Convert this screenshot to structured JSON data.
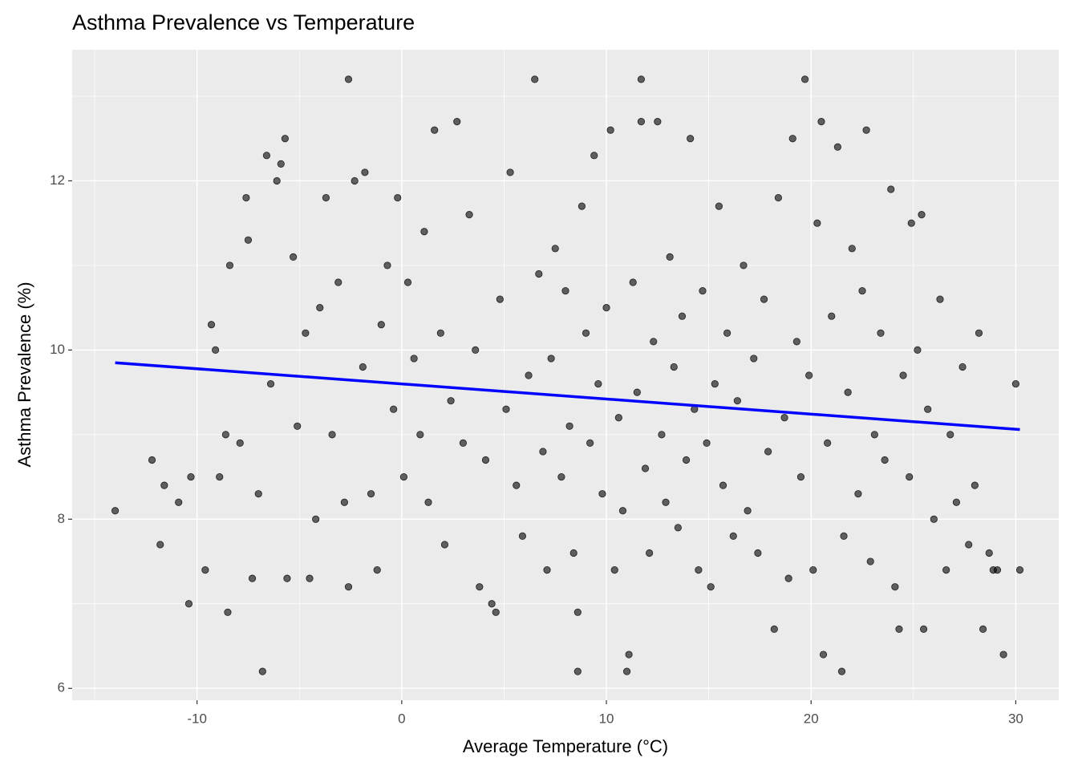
{
  "chart_data": {
    "type": "scatter",
    "title": "Asthma Prevalence vs Temperature",
    "x_label": "Average Temperature (°C)",
    "y_label": "Asthma Prevalence (%)",
    "xlim": [
      -16.1,
      32.1
    ],
    "ylim": [
      5.86,
      13.55
    ],
    "xticks": [
      -10,
      0,
      10,
      20,
      30
    ],
    "yticks": [
      6,
      8,
      10,
      12
    ],
    "grid": true,
    "color": "#000000",
    "x": [
      -14,
      -12.2,
      -11.8,
      -11.6,
      -10.9,
      -10.4,
      -10.3,
      -9.6,
      -9.3,
      -9.1,
      -8.9,
      -8.6,
      -8.5,
      -8.4,
      -7.9,
      -7.6,
      -7.5,
      -7.3,
      -7.0,
      -6.8,
      -6.6,
      -6.4,
      -6.1,
      -5.9,
      -5.7,
      -5.6,
      -5.3,
      -5.1,
      -4.7,
      -4.5,
      -4.2,
      -4.0,
      -3.7,
      -3.4,
      -3.1,
      -2.8,
      -2.6,
      -2.6,
      -2.3,
      -1.9,
      -1.8,
      -1.5,
      -1.2,
      -1.0,
      -0.7,
      -0.4,
      -0.2,
      0.1,
      0.3,
      0.6,
      0.9,
      1.1,
      1.3,
      1.6,
      1.9,
      2.1,
      2.4,
      2.7,
      3.0,
      3.3,
      3.6,
      3.8,
      4.1,
      4.4,
      4.6,
      4.8,
      5.1,
      5.3,
      5.6,
      5.9,
      6.2,
      6.5,
      6.7,
      6.9,
      7.1,
      7.3,
      7.5,
      7.8,
      8.0,
      8.2,
      8.4,
      8.6,
      8.6,
      8.8,
      9.0,
      9.2,
      9.4,
      9.6,
      9.8,
      10.0,
      10.2,
      10.4,
      10.6,
      10.8,
      11.0,
      11.1,
      11.3,
      11.5,
      11.7,
      11.7,
      11.9,
      12.1,
      12.3,
      12.5,
      12.7,
      12.9,
      13.1,
      13.3,
      13.5,
      13.7,
      13.9,
      14.1,
      14.3,
      14.5,
      14.7,
      14.9,
      15.1,
      15.3,
      15.5,
      15.7,
      15.9,
      16.2,
      16.4,
      16.7,
      16.9,
      17.2,
      17.4,
      17.7,
      17.9,
      18.2,
      18.4,
      18.7,
      18.9,
      19.1,
      19.3,
      19.5,
      19.7,
      19.9,
      20.1,
      20.3,
      20.5,
      20.6,
      20.8,
      21.0,
      21.3,
      21.5,
      21.6,
      21.8,
      22.0,
      22.3,
      22.5,
      22.7,
      22.9,
      23.1,
      23.4,
      23.6,
      23.9,
      24.1,
      24.3,
      24.5,
      24.8,
      24.9,
      25.2,
      25.4,
      25.5,
      25.7,
      26.0,
      26.3,
      26.6,
      26.8,
      27.1,
      27.4,
      27.7,
      28.0,
      28.2,
      28.4,
      28.7,
      28.9,
      29.1,
      29.4,
      30.0,
      30.2
    ],
    "values": [
      8.1,
      8.7,
      7.7,
      8.4,
      8.2,
      7.0,
      8.5,
      7.4,
      10.3,
      10.0,
      8.5,
      9.0,
      6.9,
      11.0,
      8.9,
      11.8,
      11.3,
      7.3,
      8.3,
      6.2,
      12.3,
      9.6,
      12.0,
      12.2,
      12.5,
      7.3,
      11.1,
      9.1,
      10.2,
      7.3,
      8.0,
      10.5,
      11.8,
      9.0,
      10.8,
      8.2,
      13.2,
      7.2,
      12.0,
      9.8,
      12.1,
      8.3,
      7.4,
      10.3,
      11.0,
      9.3,
      11.8,
      8.5,
      10.8,
      9.9,
      9.0,
      11.4,
      8.2,
      12.6,
      10.2,
      7.7,
      9.4,
      12.7,
      8.9,
      11.6,
      10.0,
      7.2,
      8.7,
      7.0,
      6.9,
      10.6,
      9.3,
      12.1,
      8.4,
      7.8,
      9.7,
      13.2,
      10.9,
      8.8,
      7.4,
      9.9,
      11.2,
      8.5,
      10.7,
      9.1,
      7.6,
      6.2,
      6.9,
      11.7,
      10.2,
      8.9,
      12.3,
      9.6,
      8.3,
      10.5,
      12.6,
      7.4,
      9.2,
      8.1,
      6.2,
      6.4,
      10.8,
      9.5,
      13.2,
      12.7,
      8.6,
      7.6,
      10.1,
      12.7,
      9.0,
      8.2,
      11.1,
      9.8,
      7.9,
      10.4,
      8.7,
      12.5,
      9.3,
      7.4,
      10.7,
      8.9,
      7.2,
      9.6,
      11.7,
      8.4,
      10.2,
      7.8,
      9.4,
      11.0,
      8.1,
      9.9,
      7.6,
      10.6,
      8.8,
      6.7,
      11.8,
      9.2,
      7.3,
      12.5,
      10.1,
      8.5,
      13.2,
      9.7,
      7.4,
      11.5,
      12.7,
      6.4,
      8.9,
      10.4,
      12.4,
      6.2,
      7.8,
      9.5,
      11.2,
      8.3,
      10.7,
      12.6,
      7.5,
      9.0,
      10.2,
      8.7,
      11.9,
      7.2,
      6.7,
      9.7,
      8.5,
      11.5,
      10.0,
      11.6,
      6.7,
      9.3,
      8.0,
      10.6,
      7.4,
      9.0,
      8.2,
      9.8,
      7.7,
      8.4,
      10.2,
      6.7,
      7.6,
      7.4,
      7.4,
      6.4,
      9.6,
      7.4
    ],
    "trend_line": {
      "color": "#0000ff",
      "x": [
        -14,
        30.2
      ],
      "values": [
        9.85,
        9.06
      ]
    }
  }
}
